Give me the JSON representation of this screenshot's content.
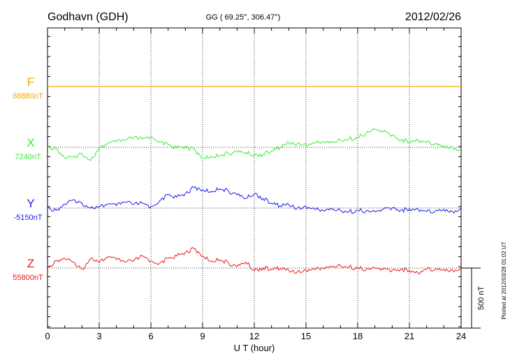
{
  "chart_data": {
    "type": "line",
    "title": "Godhavn (GDH)",
    "subtitle": "GG ( 69.25°, 306.47°)",
    "date": "2012/02/26",
    "xlabel": "U T (hour)",
    "xlim": [
      0,
      24
    ],
    "x_ticks": [
      "0",
      "3",
      "6",
      "9",
      "12",
      "15",
      "18",
      "21",
      "24"
    ],
    "x_minor_step": 1,
    "grid": true,
    "scale_bar_label": "500 nT",
    "scale_bar_nT": 500,
    "footnote": "Plotted at 2012/03/28 01:02 UT",
    "x": [
      0,
      0.5,
      1,
      1.5,
      2,
      2.5,
      3,
      3.5,
      4,
      4.5,
      5,
      5.5,
      6,
      6.5,
      7,
      7.5,
      8,
      8.5,
      9,
      9.5,
      10,
      10.5,
      11,
      11.5,
      12,
      12.5,
      13,
      13.5,
      14,
      14.5,
      15,
      15.5,
      16,
      16.5,
      17,
      17.5,
      18,
      18.5,
      19,
      19.5,
      20,
      20.5,
      21,
      21.5,
      22,
      22.5,
      23,
      23.5,
      24
    ],
    "series": [
      {
        "letter": "F",
        "baseline_label": "88880nT",
        "baseline_nT": 88880,
        "color": "#f0a800",
        "values": [
          88880,
          88880,
          88880,
          88880,
          88880,
          88880,
          88880,
          88880,
          88880,
          88880,
          88880,
          88880,
          88880,
          88880,
          88880,
          88880,
          88880,
          88880,
          88880,
          88880,
          88880,
          88880,
          88880,
          88880,
          88880,
          88880,
          88880,
          88880,
          88880,
          88880,
          88880,
          88880,
          88880,
          88880,
          88880,
          88880,
          88880,
          88880,
          88880,
          88880,
          88880,
          88880,
          88880,
          88880,
          88880,
          88880,
          88880,
          88880,
          88880
        ]
      },
      {
        "letter": "X",
        "baseline_label": "7240nT",
        "baseline_nT": 7240,
        "color": "#33ee33",
        "values": [
          7240,
          7230,
          7150,
          7160,
          7190,
          7130,
          7230,
          7270,
          7285,
          7300,
          7320,
          7310,
          7330,
          7290,
          7260,
          7235,
          7245,
          7220,
          7150,
          7165,
          7170,
          7190,
          7200,
          7195,
          7175,
          7180,
          7210,
          7240,
          7280,
          7270,
          7260,
          7275,
          7285,
          7280,
          7300,
          7310,
          7320,
          7360,
          7390,
          7370,
          7340,
          7300,
          7290,
          7300,
          7280,
          7270,
          7250,
          7240,
          7220
        ]
      },
      {
        "letter": "Y",
        "baseline_label": "-5150nT",
        "baseline_nT": -5150,
        "color": "#1a1aee",
        "values": [
          -5150,
          -5170,
          -5120,
          -5080,
          -5110,
          -5150,
          -5140,
          -5120,
          -5130,
          -5100,
          -5120,
          -5110,
          -5140,
          -5090,
          -5040,
          -5060,
          -5030,
          -4980,
          -5000,
          -5010,
          -4990,
          -5010,
          -5040,
          -5070,
          -5030,
          -5070,
          -5110,
          -5130,
          -5120,
          -5150,
          -5140,
          -5160,
          -5170,
          -5160,
          -5170,
          -5180,
          -5170,
          -5175,
          -5180,
          -5160,
          -5150,
          -5170,
          -5160,
          -5160,
          -5180,
          -5175,
          -5160,
          -5180,
          -5150
        ]
      },
      {
        "letter": "Z",
        "baseline_label": "55800nT",
        "baseline_nT": 55800,
        "color": "#ee1a1a",
        "values": [
          55800,
          55860,
          55880,
          55850,
          55790,
          55880,
          55850,
          55890,
          55870,
          55850,
          55860,
          55900,
          55860,
          55840,
          55880,
          55900,
          55930,
          55960,
          55900,
          55860,
          55870,
          55840,
          55810,
          55850,
          55780,
          55800,
          55790,
          55800,
          55780,
          55770,
          55780,
          55790,
          55800,
          55810,
          55820,
          55810,
          55800,
          55790,
          55800,
          55790,
          55780,
          55790,
          55780,
          55760,
          55790,
          55790,
          55790,
          55780,
          55800
        ]
      }
    ]
  }
}
